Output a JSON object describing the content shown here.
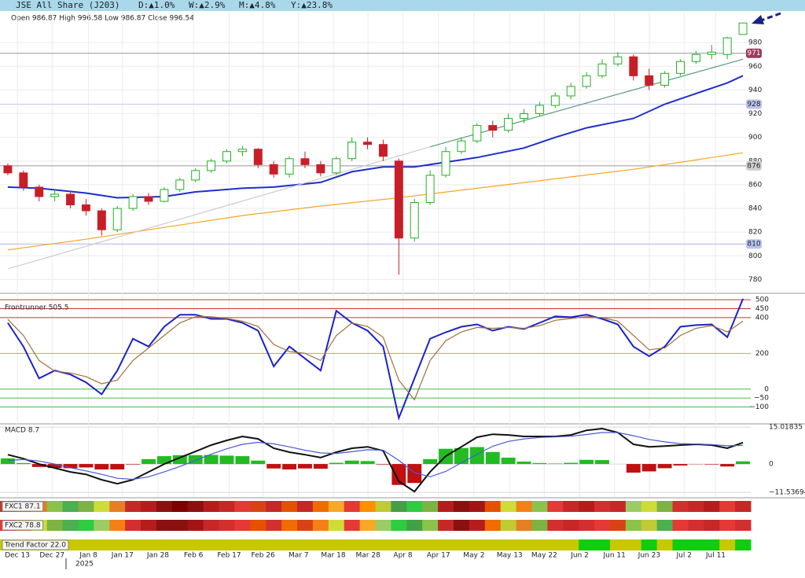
{
  "header": {
    "title": "JSE All Share (J203)",
    "changes": [
      "D:▲1.0%",
      "W:▲2.9%",
      "M:▲4.8%",
      "Y:▲23.8%"
    ]
  },
  "chart_data": [
    {
      "type": "candlestick",
      "ohlc_text": "Open 986.87  High 996.58  Low 986.87  Close 996.54",
      "xlim": [
        -0.5,
        47.5
      ],
      "xticks": [
        {
          "value": 0.61,
          "label": "Dec 13"
        },
        {
          "value": 2.83,
          "label": "Dec 27"
        },
        {
          "value": 5.16,
          "label": "Jan 8"
        },
        {
          "value": 7.33,
          "label": "Jan 17"
        },
        {
          "value": 9.6,
          "label": "Jan 28"
        },
        {
          "value": 11.87,
          "label": "Feb 6"
        },
        {
          "value": 14.15,
          "label": "Feb 17"
        },
        {
          "value": 16.32,
          "label": "Feb 26"
        },
        {
          "value": 18.59,
          "label": "Mar 7"
        },
        {
          "value": 20.81,
          "label": "Mar 18"
        },
        {
          "value": 23.03,
          "label": "Mar 28"
        },
        {
          "value": 25.26,
          "label": "Apr 8"
        },
        {
          "value": 27.53,
          "label": "Apr 17"
        },
        {
          "value": 29.8,
          "label": "May 2"
        },
        {
          "value": 32.08,
          "label": "May 13"
        },
        {
          "value": 34.3,
          "label": "May 22"
        },
        {
          "value": 36.57,
          "label": "Jun 2"
        },
        {
          "value": 38.79,
          "label": "Jun 11"
        },
        {
          "value": 41.01,
          "label": "Jun 23"
        },
        {
          "value": 43.24,
          "label": "Jul 2"
        },
        {
          "value": 45.26,
          "label": "Jul 11"
        }
      ],
      "year_label": "2025",
      "ylim": [
        769,
        1006
      ],
      "yticks": [
        780,
        800,
        820,
        840,
        860,
        880,
        900,
        920,
        940,
        960,
        980
      ],
      "up_color": "#22b022",
      "down_color": "#c81e28",
      "open": [
        876,
        870,
        858,
        850,
        852,
        843,
        838,
        822,
        840,
        850,
        846,
        856,
        864,
        872,
        880,
        888,
        890,
        877,
        869,
        882,
        877,
        870,
        882,
        896,
        894,
        880,
        815,
        845,
        868,
        888,
        897,
        910,
        906,
        916,
        920,
        927,
        935,
        943,
        952,
        962,
        968,
        952,
        944,
        954,
        964,
        970,
        970,
        986.87
      ],
      "high": [
        878,
        872,
        860,
        856,
        855,
        848,
        840,
        842,
        852,
        853,
        858,
        866,
        874,
        882,
        890,
        893,
        891,
        880,
        884,
        888,
        880,
        884,
        900,
        900,
        898,
        882,
        848,
        872,
        892,
        900,
        912,
        914,
        920,
        924,
        930,
        938,
        946,
        955,
        966,
        972,
        970,
        958,
        956,
        966,
        973,
        978,
        985,
        996.58
      ],
      "low": [
        868,
        855,
        846,
        846,
        840,
        834,
        817,
        820,
        838,
        843,
        845,
        854,
        862,
        870,
        878,
        884,
        874,
        866,
        866,
        874,
        867,
        868,
        880,
        890,
        880,
        784,
        812,
        843,
        866,
        886,
        895,
        900,
        904,
        912,
        918,
        925,
        932,
        941,
        950,
        960,
        948,
        940,
        942,
        952,
        962,
        966,
        966,
        986.87
      ],
      "close": [
        870,
        858,
        850,
        852,
        843,
        838,
        822,
        840,
        850,
        846,
        856,
        864,
        872,
        880,
        888,
        890,
        877,
        869,
        882,
        877,
        870,
        882,
        896,
        894,
        884,
        815,
        845,
        868,
        888,
        897,
        910,
        906,
        916,
        920,
        927,
        935,
        943,
        952,
        962,
        968,
        952,
        944,
        954,
        964,
        970,
        972,
        984,
        996.54
      ],
      "series": [
        {
          "color": "#1f2ecc",
          "x": [
            0,
            2,
            5,
            7,
            10,
            12,
            15,
            17,
            20,
            22,
            24,
            26,
            28,
            30,
            33,
            35,
            37,
            40,
            42,
            44,
            46,
            47
          ],
          "values": [
            858,
            857,
            853,
            849,
            850,
            854,
            857,
            858,
            862,
            871,
            875,
            875,
            879,
            883,
            891,
            900,
            908,
            916,
            928,
            937,
            946,
            952
          ]
        },
        {
          "color": "#f5a623",
          "x": [
            0,
            5,
            10,
            15,
            20,
            25,
            30,
            35,
            40,
            45,
            47
          ],
          "values": [
            805,
            814,
            824,
            834,
            842,
            849,
            857,
            865,
            873,
            883,
            887
          ]
        },
        {
          "color": "#cccccc",
          "x": [
            0,
            27
          ],
          "values": [
            789,
            892
          ]
        },
        {
          "color": "#5a9a7a",
          "x": [
            27,
            47
          ],
          "values": [
            892,
            966
          ]
        }
      ],
      "levels": [
        {
          "value": 971,
          "color": "#999999",
          "box": "#9c3b5a",
          "text_color": "#ffffff"
        },
        {
          "value": 928,
          "color": "#c8c8f0",
          "box": "#b8c4f0",
          "text_color": "#222222"
        },
        {
          "value": 876,
          "color": "#999999",
          "box": "#d0d0d0",
          "text_color": "#222222"
        },
        {
          "value": 810,
          "color": "#b0b0ee",
          "box": "#b8c4f0",
          "text_color": "#222222"
        }
      ]
    },
    {
      "type": "line",
      "title": "Frontrunner 505.5",
      "ylim": [
        -190,
        527
      ],
      "yticks": [
        500,
        450,
        400,
        200,
        0,
        {
          "value": -50,
          "label": "−50"
        },
        {
          "value": -100,
          "label": "−100"
        }
      ],
      "grid_colors": [
        "#cc3333",
        "#cc3333",
        "#cc3333",
        "#e8a020",
        "#40c040",
        "#40c040",
        "#40c040"
      ],
      "series": [
        {
          "color": "#1a22cc",
          "values": [
            371,
            238,
            60,
            104,
            82,
            38,
            -29,
            104,
            282,
            238,
            349,
            416,
            416,
            393,
            393,
            371,
            327,
            127,
            238,
            171,
            104,
            438,
            371,
            327,
            238,
            -162,
            60,
            282,
            318,
            349,
            362,
            327,
            349,
            336,
            371,
            407,
            402,
            416,
            393,
            362,
            238,
            184,
            238,
            349,
            358,
            362,
            291,
            505.5
          ]
        },
        {
          "color": "#a0703a",
          "values": [
            390,
            300,
            160,
            100,
            90,
            70,
            30,
            50,
            160,
            230,
            300,
            370,
            405,
            405,
            395,
            380,
            350,
            250,
            210,
            200,
            160,
            300,
            370,
            350,
            290,
            50,
            -60,
            160,
            270,
            320,
            345,
            340,
            345,
            340,
            355,
            385,
            395,
            405,
            400,
            380,
            300,
            220,
            230,
            300,
            340,
            355,
            320,
            380
          ]
        }
      ]
    },
    {
      "type": "macd",
      "title": "MACD 8.7",
      "ylim": [
        -13.4,
        16
      ],
      "yticks": [
        15.01835,
        0,
        {
          "value": -11.53694,
          "label": "−11.53694"
        }
      ],
      "up_color": "#22bb22",
      "down_color": "#c01010",
      "histogram": [
        2.3,
        0.4,
        -1.2,
        -1.6,
        -1.7,
        -1.4,
        -2.2,
        -2.2,
        -0.2,
        2,
        3.2,
        3.6,
        3.6,
        3.7,
        3.4,
        3.2,
        1.4,
        -1.8,
        -2.2,
        -1.8,
        -1.9,
        0.5,
        1.4,
        1.2,
        -0.2,
        -8.5,
        -7.7,
        2,
        6.2,
        6.5,
        6.9,
        4.9,
        2.6,
        1,
        0.4,
        0.2,
        0.5,
        1.7,
        1.6,
        0,
        -3.5,
        -3,
        -1.7,
        -0.6,
        -0.1,
        -0.2,
        -1,
        1.1
      ],
      "series": [
        {
          "color": "#111111",
          "values": [
            3.8,
            2.2,
            0,
            -1.6,
            -3.2,
            -4.2,
            -6.4,
            -8,
            -6.4,
            -3.2,
            0,
            2.6,
            5.1,
            7.7,
            9.6,
            11.2,
            10.2,
            6.4,
            4.8,
            3.8,
            2.6,
            4.8,
            6.4,
            7,
            5.4,
            -7,
            -11.2,
            -3.2,
            3.2,
            7,
            10.9,
            12.1,
            11.8,
            11.2,
            11.2,
            11.2,
            11.8,
            13.7,
            14.4,
            12.8,
            8,
            7,
            7.3,
            7.7,
            8,
            7.7,
            6.4,
            8.7
          ]
        },
        {
          "color": "#4a5ad8",
          "values": [
            1.5,
            1.8,
            1.2,
            0,
            -1.5,
            -2.8,
            -4.2,
            -5.8,
            -6.2,
            -5.2,
            -3.2,
            -1,
            1.5,
            4,
            6.2,
            8,
            8.8,
            8.2,
            7,
            5.6,
            4.5,
            4.3,
            5,
            5.8,
            5.6,
            1.5,
            -3.5,
            -5.2,
            -3,
            0.5,
            4,
            7.2,
            9.2,
            10.2,
            10.8,
            11,
            11.3,
            12,
            12.8,
            12.8,
            11.5,
            10,
            9,
            8.3,
            8.1,
            7.9,
            7.4,
            7.6
          ]
        }
      ]
    },
    {
      "type": "heatstrip",
      "title": "FXC1 87.1",
      "colors": [
        "#c0392b",
        "#d35400",
        "#e67e22",
        "#8bc34a",
        "#4caf50",
        "#7cb342",
        "#cddc39",
        "#e67e22",
        "#c62828",
        "#b71c1c",
        "#8b1010",
        "#7f0000",
        "#8b1010",
        "#b71c1c",
        "#c62828",
        "#e53935",
        "#d84315",
        "#c62828",
        "#e65100",
        "#c62828",
        "#ef6c00",
        "#f9a825",
        "#e53935",
        "#ff8f00",
        "#c0ca33",
        "#43a047",
        "#2ecc40",
        "#7cb342",
        "#b71c1c",
        "#8b1010",
        "#a31515",
        "#e65100",
        "#cddc39",
        "#f57f17",
        "#8bc34a",
        "#e53935",
        "#c62828",
        "#b71c1c",
        "#d32f2f",
        "#c62828",
        "#9ccc65",
        "#cddc39",
        "#7cb342",
        "#d32f2f",
        "#c62828",
        "#b71c1c",
        "#e53935",
        "#c62828"
      ]
    },
    {
      "type": "heatstrip",
      "title": "FXC2 78.8",
      "colors": [
        "#e53935",
        "#e67e22",
        "#cddc39",
        "#7cb342",
        "#4caf50",
        "#2ecc40",
        "#9ccc65",
        "#f57f17",
        "#d32f2f",
        "#b71c1c",
        "#8b1010",
        "#8b1010",
        "#a31515",
        "#c62828",
        "#d32f2f",
        "#e53935",
        "#e65100",
        "#d32f2f",
        "#ef6c00",
        "#d84315",
        "#f57f17",
        "#cddc39",
        "#e53935",
        "#f9a825",
        "#9ccc65",
        "#2ecc40",
        "#43a047",
        "#8bc34a",
        "#c62828",
        "#8b1010",
        "#b71c1c",
        "#ef6c00",
        "#c0ca33",
        "#e67e22",
        "#7cb342",
        "#d32f2f",
        "#c62828",
        "#d32f2f",
        "#e53935",
        "#d84315",
        "#8bc34a",
        "#c0ca33",
        "#4caf50",
        "#e53935",
        "#d32f2f",
        "#c62828",
        "#e53935",
        "#d32f2f"
      ]
    },
    {
      "type": "heatstrip",
      "title": "Trend Factor 22.0",
      "colors": [
        "#c8c800",
        "#c8c800",
        "#c8c800",
        "#c8c800",
        "#c8c800",
        "#c8c800",
        "#c8c800",
        "#c8c800",
        "#c8c800",
        "#c8c800",
        "#c8c800",
        "#c8c800",
        "#c8c800",
        "#c8c800",
        "#c8c800",
        "#c8c800",
        "#c8c800",
        "#c8c800",
        "#c8c800",
        "#c8c800",
        "#c8c800",
        "#c8c800",
        "#c8c800",
        "#c8c800",
        "#c8c800",
        "#c8c800",
        "#c8c800",
        "#c8c800",
        "#c8c800",
        "#c8c800",
        "#c8c800",
        "#c8c800",
        "#c8c800",
        "#c8c800",
        "#c8c800",
        "#c8c800",
        "#c8c800",
        "#11cc11",
        "#11cc11",
        "#c8c800",
        "#c8c800",
        "#11cc11",
        "#c8c800",
        "#11cc11",
        "#11cc11",
        "#11cc11",
        "#c8c800",
        "#11cc11"
      ]
    }
  ]
}
